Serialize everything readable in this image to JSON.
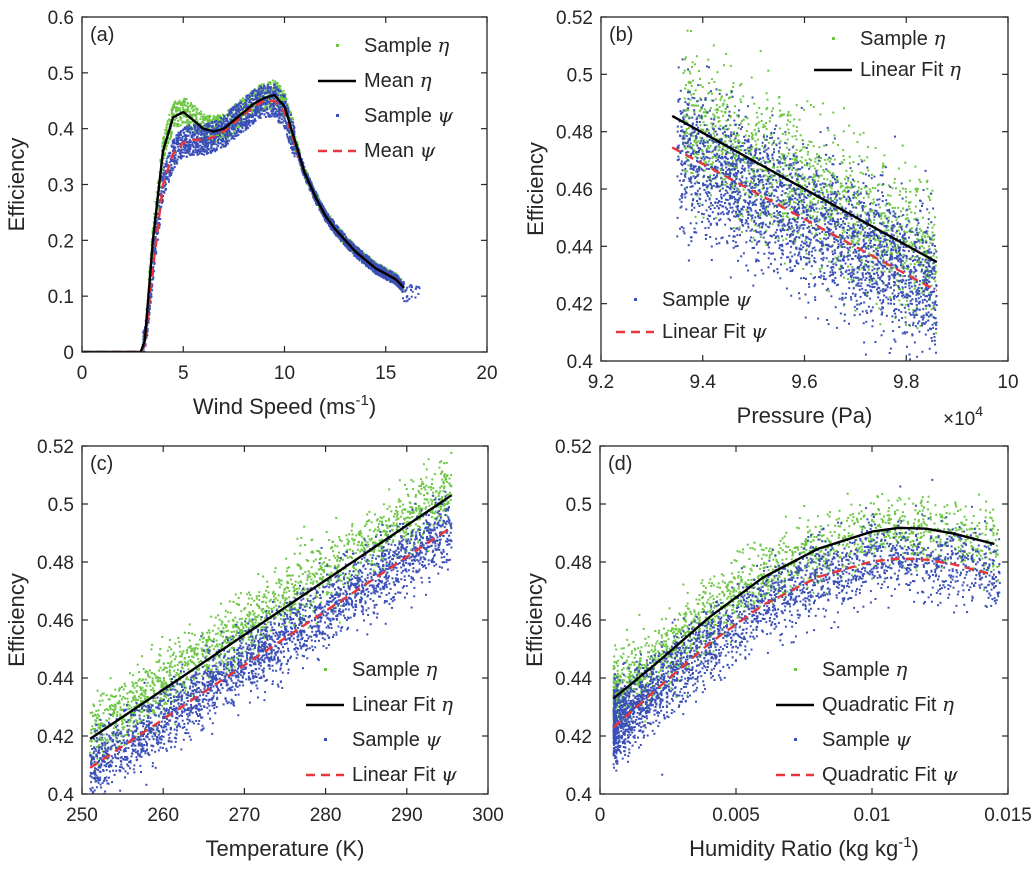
{
  "figure": {
    "multiplier_label": "×10",
    "multiplier_exp": "4"
  },
  "colors": {
    "eta_sample": "#6cc644",
    "psi_sample": "#3b4fb8",
    "eta_line": "#000000",
    "psi_line": "#e8363a",
    "axis": "#262626"
  },
  "chart_data": [
    {
      "panel": "(a)",
      "type": "scatter",
      "xlabel": "Wind Speed (ms",
      "xlabel_sup": "-1",
      "xlabel_end": ")",
      "ylabel": "Efficiency",
      "xlim": [
        0,
        20
      ],
      "ylim": [
        0,
        0.6
      ],
      "xticks": [
        "0",
        "5",
        "10",
        "15",
        "20"
      ],
      "yticks": [
        "0",
        "0.1",
        "0.2",
        "0.3",
        "0.4",
        "0.5",
        "0.6"
      ],
      "legend": {
        "position": "top-right",
        "entries": [
          {
            "text": "Sample ",
            "sym": "η",
            "kind": "dot",
            "color": "eta"
          },
          {
            "text": "Mean ",
            "sym": "η",
            "kind": "solid",
            "color": "eta"
          },
          {
            "text": "Sample ",
            "sym": "ψ",
            "kind": "dot",
            "color": "psi"
          },
          {
            "text": "Mean ",
            "sym": "ψ",
            "kind": "dash",
            "color": "psi"
          }
        ]
      },
      "mean_eta": {
        "x": [
          0,
          2.9,
          3.1,
          3.5,
          4,
          4.5,
          5,
          5.5,
          6,
          6.5,
          7,
          7.5,
          8,
          8.5,
          9,
          9.5,
          10,
          10.5,
          11,
          11.5,
          12,
          12.5,
          13,
          13.5,
          14,
          14.5,
          15,
          15.5,
          15.9
        ],
        "y": [
          0,
          0,
          0.02,
          0.2,
          0.36,
          0.42,
          0.43,
          0.415,
          0.4,
          0.395,
          0.4,
          0.415,
          0.43,
          0.445,
          0.455,
          0.46,
          0.44,
          0.38,
          0.32,
          0.28,
          0.245,
          0.22,
          0.2,
          0.18,
          0.165,
          0.15,
          0.14,
          0.13,
          0.115
        ]
      },
      "mean_psi": {
        "x": [
          0,
          2.9,
          3.1,
          3.5,
          4,
          4.5,
          5,
          5.5,
          6,
          6.5,
          7,
          7.5,
          8,
          8.5,
          9,
          9.5,
          10,
          10.5,
          11,
          11.5,
          12,
          12.5,
          13,
          13.5,
          14,
          14.5,
          15,
          15.5,
          15.9
        ],
        "y": [
          0,
          0,
          0.015,
          0.15,
          0.3,
          0.355,
          0.375,
          0.38,
          0.38,
          0.385,
          0.395,
          0.41,
          0.425,
          0.44,
          0.45,
          0.45,
          0.43,
          0.375,
          0.32,
          0.28,
          0.245,
          0.22,
          0.2,
          0.18,
          0.165,
          0.15,
          0.14,
          0.13,
          0.115
        ]
      }
    },
    {
      "panel": "(b)",
      "type": "scatter",
      "xlabel": "Pressure (Pa)",
      "ylabel": "Efficiency",
      "xlim": [
        92000,
        100000
      ],
      "ylim": [
        0.4,
        0.52
      ],
      "xticks": [
        "9.2",
        "9.4",
        "9.6",
        "9.8",
        "10"
      ],
      "yticks": [
        "0.4",
        "0.42",
        "0.44",
        "0.46",
        "0.48",
        "0.5",
        "0.52"
      ],
      "legend": {
        "position": "top-right / bottom-left",
        "entries": [
          {
            "text": "Sample ",
            "sym": "η",
            "kind": "dot",
            "color": "eta"
          },
          {
            "text": "Linear Fit ",
            "sym": "η",
            "kind": "solid",
            "color": "eta"
          },
          {
            "text": "Sample ",
            "sym": "ψ",
            "kind": "dot",
            "color": "psi"
          },
          {
            "text": "Linear Fit ",
            "sym": "ψ",
            "kind": "dash",
            "color": "psi"
          }
        ]
      },
      "fit_eta": {
        "x": [
          93400,
          98600
        ],
        "y": [
          0.4855,
          0.4345
        ]
      },
      "fit_psi": {
        "x": [
          93400,
          98600
        ],
        "y": [
          0.4745,
          0.4245
        ]
      }
    },
    {
      "panel": "(c)",
      "type": "scatter",
      "xlabel": "Temperature (K)",
      "ylabel": "Efficiency",
      "xlim": [
        250,
        300
      ],
      "ylim": [
        0.4,
        0.52
      ],
      "xticks": [
        "250",
        "260",
        "270",
        "280",
        "290",
        "300"
      ],
      "yticks": [
        "0.4",
        "0.42",
        "0.44",
        "0.46",
        "0.48",
        "0.5",
        "0.52"
      ],
      "legend": {
        "position": "bottom-right",
        "entries": [
          {
            "text": "Sample ",
            "sym": "η",
            "kind": "dot",
            "color": "eta"
          },
          {
            "text": "Linear Fit ",
            "sym": "η",
            "kind": "solid",
            "color": "eta"
          },
          {
            "text": "Sample ",
            "sym": "ψ",
            "kind": "dot",
            "color": "psi"
          },
          {
            "text": "Linear Fit ",
            "sym": "ψ",
            "kind": "dash",
            "color": "psi"
          }
        ]
      },
      "fit_eta": {
        "x": [
          251,
          295.5
        ],
        "y": [
          0.419,
          0.503
        ]
      },
      "fit_psi": {
        "x": [
          251,
          295.5
        ],
        "y": [
          0.409,
          0.492
        ]
      }
    },
    {
      "panel": "(d)",
      "type": "scatter",
      "xlabel": "Humidity Ratio (kg kg",
      "xlabel_sup": "-1",
      "xlabel_end": ")",
      "ylabel": "Efficiency",
      "xlim": [
        0,
        0.015
      ],
      "ylim": [
        0.4,
        0.52
      ],
      "xticks": [
        "0",
        "0.005",
        "0.01",
        "0.015"
      ],
      "yticks": [
        "0.4",
        "0.42",
        "0.44",
        "0.46",
        "0.48",
        "0.5",
        "0.52"
      ],
      "legend": {
        "position": "bottom-right",
        "entries": [
          {
            "text": "Sample ",
            "sym": "η",
            "kind": "dot",
            "color": "eta"
          },
          {
            "text": "Quadratic Fit ",
            "sym": "η",
            "kind": "solid",
            "color": "eta"
          },
          {
            "text": "Sample ",
            "sym": "ψ",
            "kind": "dot",
            "color": "psi"
          },
          {
            "text": "Quadratic Fit ",
            "sym": "ψ",
            "kind": "dash",
            "color": "psi"
          }
        ]
      },
      "fit_eta": {
        "x": [
          0.0005,
          0.002,
          0.004,
          0.006,
          0.008,
          0.01,
          0.011,
          0.012,
          0.013,
          0.0145
        ],
        "y": [
          0.433,
          0.4445,
          0.4608,
          0.4747,
          0.4845,
          0.4905,
          0.4918,
          0.4915,
          0.4898,
          0.4862
        ]
      },
      "fit_psi": {
        "x": [
          0.0005,
          0.002,
          0.004,
          0.006,
          0.008,
          0.01,
          0.011,
          0.012,
          0.013,
          0.0145
        ],
        "y": [
          0.423,
          0.4355,
          0.4518,
          0.4652,
          0.4748,
          0.4802,
          0.4812,
          0.4808,
          0.4792,
          0.4755
        ]
      }
    }
  ]
}
